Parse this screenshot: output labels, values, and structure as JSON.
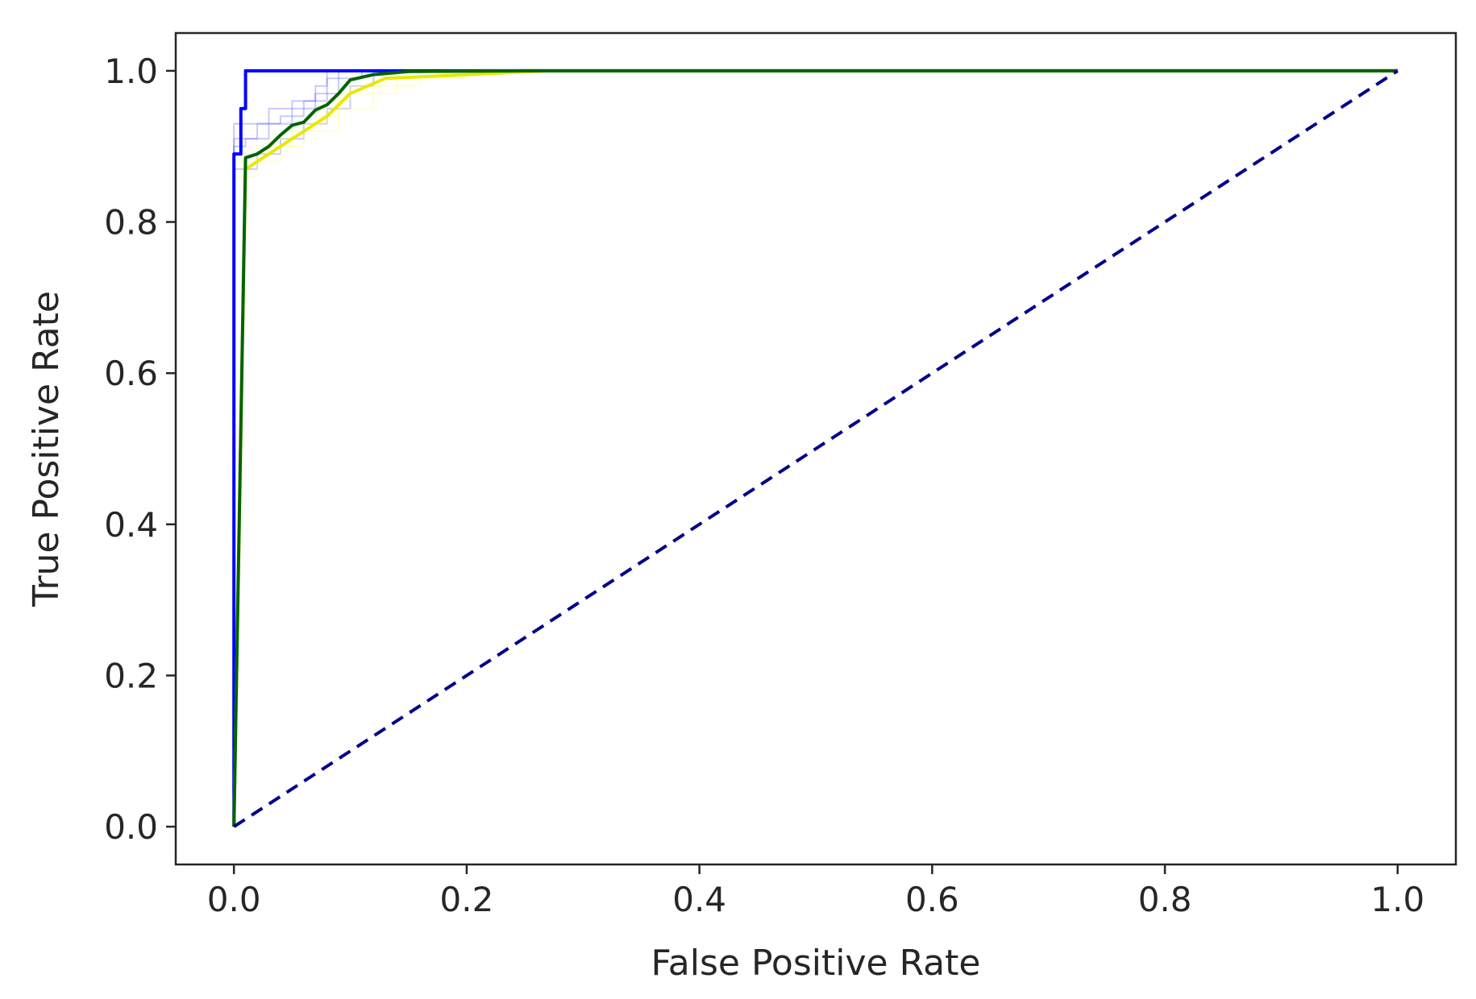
{
  "chart_data": {
    "type": "line",
    "title": "",
    "xlabel": "False Positive Rate",
    "ylabel": "True Positive Rate",
    "xlim": [
      -0.05,
      1.05
    ],
    "ylim": [
      -0.05,
      1.05
    ],
    "x_ticks": [
      0.0,
      0.2,
      0.4,
      0.6,
      0.8,
      1.0
    ],
    "y_ticks": [
      0.0,
      0.2,
      0.4,
      0.6,
      0.8,
      1.0
    ],
    "x_tick_labels": [
      "0.0",
      "0.2",
      "0.4",
      "0.6",
      "0.8",
      "1.0"
    ],
    "y_tick_labels": [
      "0.0",
      "0.2",
      "0.4",
      "0.6",
      "0.8",
      "1.0"
    ],
    "grid": false,
    "legend": "none",
    "series": [
      {
        "color": "#4d4dff",
        "style": "faint-step",
        "points": [
          [
            0,
            0
          ],
          [
            0,
            0.9
          ],
          [
            0.01,
            0.9
          ],
          [
            0.01,
            0.91
          ],
          [
            0.03,
            0.91
          ],
          [
            0.03,
            0.93
          ],
          [
            0.05,
            0.93
          ],
          [
            0.05,
            0.95
          ],
          [
            0.07,
            0.95
          ],
          [
            0.07,
            0.97
          ],
          [
            0.09,
            0.97
          ],
          [
            0.09,
            1.0
          ],
          [
            1.0,
            1.0
          ]
        ]
      },
      {
        "color": "#4d4dff",
        "style": "faint-step",
        "points": [
          [
            0,
            0
          ],
          [
            0,
            0.93
          ],
          [
            0.03,
            0.93
          ],
          [
            0.03,
            0.95
          ],
          [
            0.05,
            0.95
          ],
          [
            0.05,
            0.96
          ],
          [
            0.07,
            0.96
          ],
          [
            0.07,
            0.98
          ],
          [
            0.08,
            0.98
          ],
          [
            0.08,
            1.0
          ],
          [
            1.0,
            1.0
          ]
        ]
      },
      {
        "color": "#4d4dff",
        "style": "faint-step",
        "points": [
          [
            0,
            0
          ],
          [
            0,
            0.87
          ],
          [
            0.02,
            0.87
          ],
          [
            0.02,
            0.89
          ],
          [
            0.04,
            0.89
          ],
          [
            0.04,
            0.91
          ],
          [
            0.06,
            0.91
          ],
          [
            0.06,
            0.93
          ],
          [
            0.08,
            0.93
          ],
          [
            0.08,
            0.95
          ],
          [
            0.1,
            0.95
          ],
          [
            0.1,
            0.98
          ],
          [
            0.12,
            0.98
          ],
          [
            0.12,
            1.0
          ],
          [
            1.0,
            1.0
          ]
        ]
      },
      {
        "color": "#4d4dff",
        "style": "faint-step",
        "points": [
          [
            0,
            0
          ],
          [
            0,
            0.91
          ],
          [
            0.02,
            0.91
          ],
          [
            0.02,
            0.93
          ],
          [
            0.04,
            0.93
          ],
          [
            0.04,
            0.94
          ],
          [
            0.06,
            0.94
          ],
          [
            0.06,
            0.96
          ],
          [
            0.08,
            0.96
          ],
          [
            0.08,
            0.99
          ],
          [
            0.11,
            0.99
          ],
          [
            0.11,
            1.0
          ],
          [
            1.0,
            1.0
          ]
        ]
      },
      {
        "color": "#ffff66",
        "style": "faint-step",
        "points": [
          [
            0,
            0
          ],
          [
            0,
            0.86
          ],
          [
            0.02,
            0.86
          ],
          [
            0.02,
            0.88
          ],
          [
            0.04,
            0.88
          ],
          [
            0.04,
            0.9
          ],
          [
            0.06,
            0.9
          ],
          [
            0.06,
            0.92
          ],
          [
            0.09,
            0.92
          ],
          [
            0.09,
            0.95
          ],
          [
            0.12,
            0.95
          ],
          [
            0.12,
            0.98
          ],
          [
            0.16,
            0.98
          ],
          [
            0.16,
            1.0
          ],
          [
            1.0,
            1.0
          ]
        ]
      },
      {
        "color": "#ffff66",
        "style": "faint-step",
        "points": [
          [
            0,
            0
          ],
          [
            0,
            0.89
          ],
          [
            0.03,
            0.89
          ],
          [
            0.03,
            0.91
          ],
          [
            0.05,
            0.91
          ],
          [
            0.05,
            0.93
          ],
          [
            0.08,
            0.93
          ],
          [
            0.08,
            0.96
          ],
          [
            0.1,
            0.96
          ],
          [
            0.1,
            0.98
          ],
          [
            0.13,
            0.98
          ],
          [
            0.13,
            1.0
          ],
          [
            1.0,
            1.0
          ]
        ]
      },
      {
        "color": "#ffff66",
        "style": "faint-step",
        "points": [
          [
            0,
            0
          ],
          [
            0,
            0.88
          ],
          [
            0.02,
            0.88
          ],
          [
            0.02,
            0.9
          ],
          [
            0.05,
            0.9
          ],
          [
            0.05,
            0.92
          ],
          [
            0.07,
            0.92
          ],
          [
            0.07,
            0.94
          ],
          [
            0.09,
            0.94
          ],
          [
            0.09,
            0.97
          ],
          [
            0.14,
            0.97
          ],
          [
            0.14,
            0.99
          ],
          [
            0.2,
            0.99
          ],
          [
            0.2,
            1.0
          ],
          [
            1.0,
            1.0
          ]
        ]
      },
      {
        "color": "#0000ff",
        "style": "solid",
        "points": [
          [
            0,
            0
          ],
          [
            0,
            0.89
          ],
          [
            0.006,
            0.89
          ],
          [
            0.006,
            0.95
          ],
          [
            0.01,
            0.95
          ],
          [
            0.01,
            1.0
          ],
          [
            1.0,
            1.0
          ]
        ]
      },
      {
        "color": "#e8e800",
        "style": "solid",
        "points": [
          [
            0,
            0
          ],
          [
            0.01,
            0.87
          ],
          [
            0.02,
            0.88
          ],
          [
            0.04,
            0.9
          ],
          [
            0.06,
            0.92
          ],
          [
            0.08,
            0.94
          ],
          [
            0.1,
            0.97
          ],
          [
            0.13,
            0.99
          ],
          [
            0.27,
            1.0
          ],
          [
            1.0,
            1.0
          ]
        ]
      },
      {
        "color": "#006400",
        "style": "solid",
        "points": [
          [
            0,
            0
          ],
          [
            0.01,
            0.885
          ],
          [
            0.02,
            0.89
          ],
          [
            0.03,
            0.9
          ],
          [
            0.04,
            0.915
          ],
          [
            0.05,
            0.928
          ],
          [
            0.06,
            0.932
          ],
          [
            0.07,
            0.948
          ],
          [
            0.08,
            0.955
          ],
          [
            0.09,
            0.97
          ],
          [
            0.1,
            0.988
          ],
          [
            0.12,
            0.995
          ],
          [
            0.15,
            0.999
          ],
          [
            0.25,
            1.0
          ],
          [
            1.0,
            1.0
          ]
        ]
      },
      {
        "color": "#00008b",
        "style": "dashed",
        "points": [
          [
            0,
            0
          ],
          [
            1.0,
            1.0
          ]
        ]
      }
    ]
  }
}
